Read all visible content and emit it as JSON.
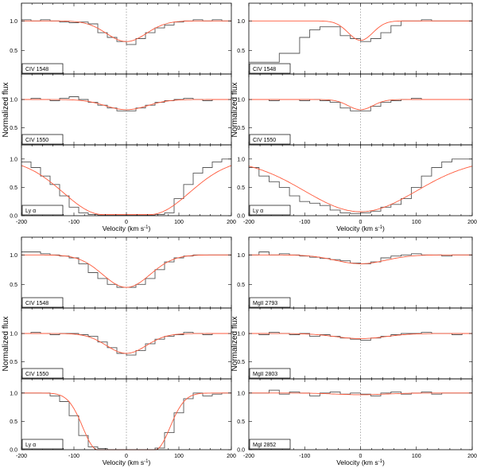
{
  "ylabel": "Normalized flux",
  "xlabel": "Velocity (km s",
  "xlabel_sup": "-1",
  "xlabel_close": ")",
  "colors": {
    "data": "#555555",
    "fit": "#ff5a3c",
    "zero": "#999999",
    "frame": "#000000"
  },
  "chart_data": [
    {
      "type": "line",
      "label": "CIV 1548",
      "xlim": [
        -200,
        200
      ],
      "ylim": [
        0.1,
        1.3
      ],
      "yticks": [
        {
          "v": 1.0,
          "t": "1.0"
        },
        {
          "v": 0.5,
          "t": "0.5"
        }
      ],
      "step": [
        1.02,
        1.0,
        1.02,
        1.0,
        0.98,
        0.97,
        0.98,
        0.95,
        0.8,
        0.72,
        0.65,
        0.6,
        0.7,
        0.8,
        0.88,
        0.93,
        0.98,
        1.0,
        1.02,
        1.0,
        1.02,
        1.0
      ],
      "fit": {
        "base": 1.0,
        "depth": 0.35,
        "sigma": 38
      }
    },
    {
      "type": "line",
      "label": "CIV 1550",
      "xlim": [
        -200,
        200
      ],
      "ylim": [
        0.2,
        1.45
      ],
      "yticks": [
        {
          "v": 1.0,
          "t": "1.0"
        },
        {
          "v": 0.5,
          "t": "0.5"
        }
      ],
      "step": [
        1.0,
        1.02,
        1.0,
        0.98,
        1.02,
        1.05,
        1.0,
        0.95,
        0.9,
        0.85,
        0.8,
        0.8,
        0.85,
        0.9,
        0.95,
        0.98,
        1.0,
        1.02,
        1.0,
        0.98,
        1.0,
        1.0
      ],
      "fit": {
        "base": 1.0,
        "depth": 0.18,
        "sigma": 40
      }
    },
    {
      "type": "line",
      "label": "Ly α",
      "xlim": [
        -200,
        200
      ],
      "ylim": [
        0.0,
        1.25
      ],
      "yticks": [
        {
          "v": 1.0,
          "t": "1.0"
        },
        {
          "v": 0.5,
          "t": "0.5"
        },
        {
          "v": 0.0,
          "t": "0.0"
        }
      ],
      "xticks": [
        "-200",
        "-100",
        "0",
        "100",
        "200"
      ],
      "step": [
        0.95,
        0.85,
        0.7,
        0.55,
        0.35,
        0.15,
        0.05,
        0.02,
        0.01,
        0.01,
        0.01,
        0.01,
        0.01,
        0.01,
        0.02,
        0.05,
        0.3,
        0.55,
        0.75,
        0.85,
        0.95,
        1.0
      ],
      "fit": {
        "base": 1.0,
        "depth": 0.98,
        "sigma": 75,
        "flat": 45
      }
    },
    {
      "type": "line",
      "label": "CIV 1548",
      "xlim": [
        -200,
        200
      ],
      "ylim": [
        0.1,
        1.3
      ],
      "yticks": [
        {
          "v": 1.0,
          "t": "1.0"
        },
        {
          "v": 0.5,
          "t": "0.5"
        }
      ],
      "step": [
        0.3,
        0.3,
        0.3,
        0.45,
        0.45,
        0.72,
        0.85,
        0.9,
        0.9,
        0.75,
        0.7,
        0.65,
        0.7,
        0.8,
        0.92,
        1.0,
        1.0,
        1.02,
        1.0,
        1.0,
        1.0,
        1.0
      ],
      "fit": {
        "base": 1.0,
        "depth": 0.33,
        "sigma": 22
      }
    },
    {
      "type": "line",
      "label": "CIV 1550",
      "xlim": [
        -200,
        200
      ],
      "ylim": [
        0.2,
        1.45
      ],
      "yticks": [
        {
          "v": 1.0,
          "t": "1.0"
        },
        {
          "v": 0.5,
          "t": "0.5"
        }
      ],
      "step": [
        1.0,
        1.0,
        0.98,
        1.0,
        1.0,
        0.98,
        1.0,
        0.98,
        0.95,
        0.85,
        0.8,
        0.8,
        0.88,
        0.95,
        0.98,
        1.0,
        1.02,
        1.0,
        1.0,
        1.0,
        1.0,
        1.0
      ],
      "fit": {
        "base": 1.0,
        "depth": 0.18,
        "sigma": 22
      }
    },
    {
      "type": "line",
      "label": "Ly α",
      "xlim": [
        -200,
        200
      ],
      "ylim": [
        0.0,
        1.25
      ],
      "yticks": [
        {
          "v": 1.0,
          "t": "1.0"
        },
        {
          "v": 0.5,
          "t": "0.5"
        },
        {
          "v": 0.0,
          "t": "0.0"
        }
      ],
      "xticks": [
        "-200",
        "-100",
        "0",
        "100",
        "200"
      ],
      "step": [
        0.85,
        0.7,
        0.6,
        0.5,
        0.35,
        0.25,
        0.22,
        0.18,
        0.1,
        0.05,
        0.04,
        0.05,
        0.08,
        0.15,
        0.2,
        0.3,
        0.5,
        0.7,
        0.85,
        0.95,
        1.0,
        1.0
      ],
      "fit": {
        "base": 1.0,
        "depth": 0.93,
        "sigma": 100
      }
    },
    {
      "type": "line",
      "label": "CIV 1548",
      "xlim": [
        -200,
        200
      ],
      "ylim": [
        0.1,
        1.3
      ],
      "yticks": [
        {
          "v": 1.0,
          "t": "1.0"
        },
        {
          "v": 0.5,
          "t": "0.5"
        }
      ],
      "step": [
        1.05,
        1.05,
        1.02,
        1.0,
        0.98,
        0.95,
        0.85,
        0.7,
        0.6,
        0.5,
        0.45,
        0.45,
        0.5,
        0.6,
        0.75,
        0.88,
        0.95,
        0.98,
        1.0,
        1.0,
        1.0,
        1.0
      ],
      "fit": {
        "base": 1.0,
        "depth": 0.55,
        "sigma": 45
      }
    },
    {
      "type": "line",
      "label": "CIV 1550",
      "xlim": [
        -200,
        200
      ],
      "ylim": [
        0.2,
        1.45
      ],
      "yticks": [
        {
          "v": 1.0,
          "t": "1.0"
        },
        {
          "v": 0.5,
          "t": "0.5"
        }
      ],
      "step": [
        1.0,
        1.02,
        1.0,
        0.98,
        1.0,
        1.0,
        0.98,
        0.95,
        0.85,
        0.75,
        0.65,
        0.62,
        0.7,
        0.82,
        0.9,
        0.95,
        0.98,
        1.02,
        1.0,
        0.98,
        1.0,
        1.0
      ],
      "fit": {
        "base": 1.0,
        "depth": 0.35,
        "sigma": 38
      }
    },
    {
      "type": "line",
      "label": "Ly α",
      "xlim": [
        -200,
        200
      ],
      "ylim": [
        0.0,
        1.25
      ],
      "yticks": [
        {
          "v": 1.0,
          "t": "1.0"
        },
        {
          "v": 0.5,
          "t": "0.5"
        },
        {
          "v": 0.0,
          "t": "0.0"
        }
      ],
      "xticks": [
        "-200",
        "-100",
        "0",
        "100",
        "200"
      ],
      "step": [
        1.0,
        1.0,
        1.0,
        0.95,
        0.85,
        0.6,
        0.25,
        0.05,
        0.02,
        0.0,
        0.0,
        0.0,
        0.0,
        0.0,
        0.03,
        0.3,
        0.65,
        0.9,
        1.0,
        0.95,
        0.98,
        1.0
      ],
      "fit": {
        "base": 1.0,
        "depth": 1.0,
        "sigma": 28,
        "flat": 55
      }
    },
    {
      "type": "line",
      "label": "MgII 2793",
      "xlim": [
        -200,
        200
      ],
      "ylim": [
        0.1,
        1.3
      ],
      "yticks": [
        {
          "v": 1.0,
          "t": "1.0"
        },
        {
          "v": 0.5,
          "t": "0.5"
        }
      ],
      "step": [
        1.0,
        1.05,
        1.0,
        1.02,
        1.0,
        0.98,
        0.96,
        0.94,
        0.92,
        0.9,
        0.86,
        0.85,
        0.88,
        0.95,
        0.98,
        1.0,
        1.02,
        1.0,
        1.0,
        0.98,
        1.0,
        1.0
      ],
      "fit": {
        "base": 1.0,
        "depth": 0.15,
        "sigma": 45
      }
    },
    {
      "type": "line",
      "label": "MgII 2803",
      "xlim": [
        -200,
        200
      ],
      "ylim": [
        0.2,
        1.45
      ],
      "yticks": [
        {
          "v": 1.0,
          "t": "1.0"
        },
        {
          "v": 0.5,
          "t": "0.5"
        }
      ],
      "step": [
        1.0,
        0.98,
        1.02,
        1.0,
        0.98,
        1.0,
        0.95,
        0.98,
        0.95,
        0.92,
        0.9,
        0.88,
        0.92,
        0.95,
        0.98,
        1.0,
        1.0,
        1.02,
        1.0,
        1.0,
        0.98,
        1.0
      ],
      "fit": {
        "base": 1.0,
        "depth": 0.09,
        "sigma": 45
      }
    },
    {
      "type": "line",
      "label": "MgI 2852",
      "xlim": [
        -200,
        200
      ],
      "ylim": [
        0.0,
        1.25
      ],
      "yticks": [
        {
          "v": 1.0,
          "t": "1.0"
        },
        {
          "v": 0.5,
          "t": "0.5"
        },
        {
          "v": 0.0,
          "t": "0.0"
        }
      ],
      "xticks": [
        "-200",
        "-100",
        "0",
        "100",
        "200"
      ],
      "step": [
        1.0,
        1.0,
        1.05,
        0.98,
        1.02,
        1.0,
        0.95,
        1.0,
        1.02,
        0.98,
        1.0,
        0.98,
        0.95,
        1.0,
        1.02,
        0.98,
        1.0,
        1.02,
        0.98,
        1.0,
        1.0,
        1.0
      ],
      "fit": {
        "base": 1.0,
        "depth": 0.03,
        "sigma": 45
      }
    }
  ]
}
